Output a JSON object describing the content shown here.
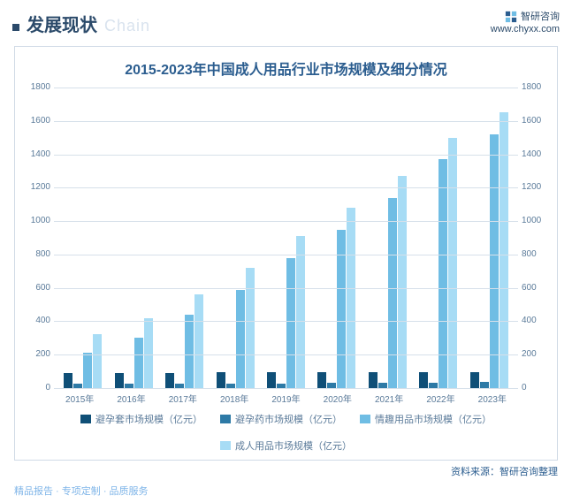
{
  "header": {
    "title": "发展现状",
    "subtitle": "Chain",
    "brand": "智研咨询",
    "url": "www.chyxx.com"
  },
  "chart": {
    "type": "bar",
    "title": "2015-2023年中国成人用品行业市场规模及细分情况",
    "background_color": "#ffffff",
    "border_color": "#d0dae6",
    "grid_color": "#d6e0ea",
    "text_color": "#5a7a99",
    "title_color": "#2b5d8f",
    "title_fontsize": 16,
    "label_fontsize": 10,
    "y_min": 0,
    "y_max": 1800,
    "y_step": 200,
    "y_ticks": [
      0,
      200,
      400,
      600,
      800,
      1000,
      1200,
      1400,
      1600,
      1800
    ],
    "categories": [
      "2015年",
      "2016年",
      "2017年",
      "2018年",
      "2019年",
      "2020年",
      "2021年",
      "2022年",
      "2023年"
    ],
    "series": [
      {
        "name": "避孕套市场规模（亿元）",
        "color": "#0f4f77",
        "values": [
          90,
          90,
          92,
          93,
          93,
          94,
          95,
          96,
          97
        ]
      },
      {
        "name": "避孕药市场规模（亿元）",
        "color": "#2d7aa6",
        "values": [
          25,
          26,
          27,
          28,
          29,
          30,
          31,
          33,
          35
        ]
      },
      {
        "name": "情趣用品市场规模（亿元）",
        "color": "#6fbde4",
        "values": [
          210,
          300,
          440,
          590,
          780,
          950,
          1140,
          1370,
          1520
        ]
      },
      {
        "name": "成人用品市场规模（亿元）",
        "color": "#a7dcf5",
        "values": [
          325,
          420,
          560,
          720,
          910,
          1080,
          1270,
          1500,
          1650
        ]
      }
    ]
  },
  "source": "资料来源：智研咨询整理",
  "footer": "精品报告 · 专项定制 · 品质服务"
}
